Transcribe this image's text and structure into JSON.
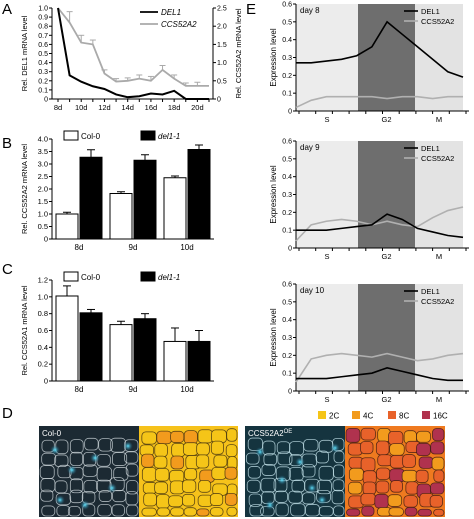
{
  "chart_data": [
    {
      "panel": "A",
      "type": "line",
      "ylabel_left": "Rel. DEL1 mRNA level",
      "ylabel_right": "Rel. CCS52A2 mRNA level",
      "x": [
        "8d",
        "9d",
        "10d",
        "11d",
        "12d",
        "13d",
        "14d",
        "15d",
        "16d",
        "17d",
        "18d",
        "19d",
        "20d",
        "21d"
      ],
      "xticklabels": [
        "8d",
        "10d",
        "12d",
        "14d",
        "16d",
        "18d",
        "20d"
      ],
      "ylim_left": [
        0,
        1.0
      ],
      "ylim_right": [
        0,
        2.5
      ],
      "yticks_left": [
        "0",
        "0.1",
        "0.2",
        "0.3",
        "0.4",
        "0.5",
        "0.6",
        "0.7",
        "0.8",
        "0.9",
        "1.0"
      ],
      "yticks_right": [
        "0",
        "0.5",
        "1.0",
        "1.5",
        "2.0",
        "2.5"
      ],
      "series": [
        {
          "name": "DEL1",
          "axis": "left",
          "color": "#000000",
          "values": [
            1.0,
            0.26,
            0.19,
            0.14,
            0.11,
            0.05,
            0.02,
            0.03,
            0.06,
            0.05,
            0.09,
            0.0,
            0.0,
            0.0
          ]
        },
        {
          "name": "CCS52A2",
          "axis": "right",
          "color": "#aaaaaa",
          "values": [
            2.5,
            2.1,
            1.55,
            1.5,
            0.7,
            0.48,
            0.5,
            0.56,
            0.5,
            0.8,
            0.56,
            0.36,
            0.36,
            0.36
          ],
          "errors": [
            0.0,
            0.3,
            0.2,
            0.12,
            0.1,
            0.08,
            0.08,
            0.1,
            0.12,
            0.12,
            0.1,
            0.08,
            0.1,
            0.0
          ]
        }
      ],
      "legend_position": "top-right"
    },
    {
      "panel": "B",
      "type": "bar",
      "ylabel": "Rel. CCS52A2 mRNA level",
      "categories": [
        "8d",
        "9d",
        "10d"
      ],
      "ylim": [
        0,
        4.0
      ],
      "yticks": [
        "0",
        "0.5",
        "1.0",
        "1.5",
        "2.0",
        "2.5",
        "3.0",
        "3.5",
        "4.0"
      ],
      "series": [
        {
          "name": "Col-0",
          "color": "#ffffff",
          "values": [
            1.0,
            1.82,
            2.45
          ],
          "errors": [
            0.07,
            0.07,
            0.07
          ]
        },
        {
          "name": "del1-1",
          "color": "#000000",
          "values": [
            3.27,
            3.15,
            3.58
          ],
          "errors": [
            0.3,
            0.22,
            0.18
          ]
        }
      ],
      "legend_position": "top"
    },
    {
      "panel": "C",
      "type": "bar",
      "ylabel": "Rel. CCS52A1 mRNA level",
      "categories": [
        "8d",
        "9d",
        "10d"
      ],
      "ylim": [
        0,
        1.2
      ],
      "yticks": [
        "0",
        "0.2",
        "0.4",
        "0.6",
        "0.8",
        "1.0",
        "1.2"
      ],
      "series": [
        {
          "name": "Col-0",
          "color": "#ffffff",
          "values": [
            1.01,
            0.67,
            0.47
          ],
          "errors": [
            0.12,
            0.04,
            0.16
          ]
        },
        {
          "name": "del1-1",
          "color": "#000000",
          "values": [
            0.81,
            0.74,
            0.47
          ],
          "errors": [
            0.04,
            0.06,
            0.13
          ]
        }
      ],
      "legend_position": "top"
    },
    {
      "panel": "E",
      "type": "line",
      "ylabel": "Expression level",
      "phases": [
        "S",
        "G2",
        "M"
      ],
      "subpanels": [
        {
          "title": "day 8",
          "ylim": [
            0,
            0.6
          ],
          "yticks": [
            "0",
            "0.1",
            "0.2",
            "0.3",
            "0.4",
            "0.5",
            "0.6"
          ],
          "series": [
            {
              "name": "DEL1",
              "color": "#000000",
              "values": [
                0.27,
                0.27,
                0.28,
                0.29,
                0.31,
                0.36,
                0.5,
                0.43,
                0.36,
                0.29,
                0.22,
                0.19
              ]
            },
            {
              "name": "CCS52A2",
              "color": "#b0b0b0",
              "values": [
                0.02,
                0.06,
                0.08,
                0.08,
                0.08,
                0.08,
                0.07,
                0.08,
                0.08,
                0.07,
                0.08,
                0.08
              ]
            }
          ]
        },
        {
          "title": "day 9",
          "ylim": [
            0,
            0.6
          ],
          "yticks": [
            "0",
            "0.1",
            "0.2",
            "0.3",
            "0.4",
            "0.5",
            "0.6"
          ],
          "series": [
            {
              "name": "DEL1",
              "color": "#000000",
              "values": [
                0.1,
                0.1,
                0.1,
                0.11,
                0.12,
                0.13,
                0.19,
                0.16,
                0.11,
                0.09,
                0.07,
                0.06
              ]
            },
            {
              "name": "CCS52A2",
              "color": "#b0b0b0",
              "values": [
                0.04,
                0.13,
                0.15,
                0.16,
                0.15,
                0.13,
                0.15,
                0.13,
                0.12,
                0.17,
                0.21,
                0.23
              ]
            }
          ]
        },
        {
          "title": "day 10",
          "ylim": [
            0,
            0.6
          ],
          "yticks": [
            "0",
            "0.1",
            "0.2",
            "0.3",
            "0.4",
            "0.5",
            "0.6"
          ],
          "series": [
            {
              "name": "DEL1",
              "color": "#000000",
              "values": [
                0.07,
                0.07,
                0.07,
                0.08,
                0.09,
                0.1,
                0.13,
                0.11,
                0.09,
                0.07,
                0.06,
                0.06
              ]
            },
            {
              "name": "CCS52A2",
              "color": "#b0b0b0",
              "values": [
                0.05,
                0.18,
                0.2,
                0.21,
                0.2,
                0.19,
                0.21,
                0.19,
                0.17,
                0.18,
                0.2,
                0.21
              ]
            }
          ]
        }
      ]
    },
    {
      "panel": "D",
      "type": "image-grid",
      "images": [
        "Col-0",
        "CCS52A2OE"
      ],
      "ploidy_legend": [
        {
          "label": "2C",
          "color": "#f5c518"
        },
        {
          "label": "4C",
          "color": "#f29b1d"
        },
        {
          "label": "8C",
          "color": "#e8622a"
        },
        {
          "label": "16C",
          "color": "#b0324e"
        }
      ]
    }
  ],
  "panel_letters": {
    "a": "A",
    "b": "B",
    "c": "C",
    "d": "D",
    "e": "E"
  },
  "image_labels": {
    "col0": "Col-0",
    "ccs": "CCS52A2",
    "ccs_sup": "OE"
  }
}
